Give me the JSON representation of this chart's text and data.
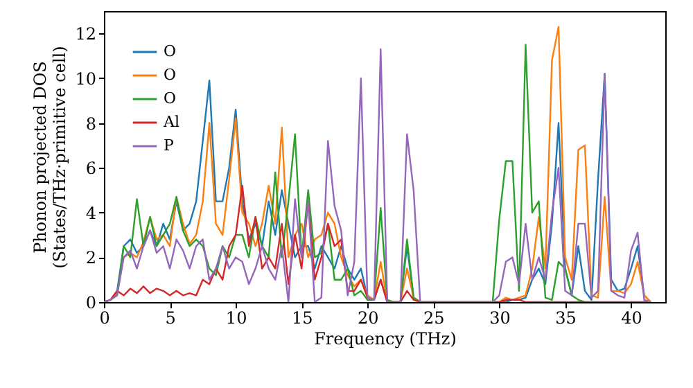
{
  "chart_data": {
    "type": "line",
    "xlabel": "Frequency (THz)",
    "ylabel": "Phonon projected DOS\n(States/THz·primitive cell)",
    "xlim": [
      0,
      42.6
    ],
    "ylim": [
      0,
      13
    ],
    "xticks": [
      0,
      5,
      10,
      15,
      20,
      25,
      30,
      35,
      40
    ],
    "yticks": [
      0,
      2,
      4,
      6,
      8,
      10,
      12
    ],
    "grid": false,
    "legend": "top left",
    "marker": "none",
    "line_style": "solid",
    "x": [
      0,
      0.5,
      1,
      1.5,
      2,
      2.5,
      3,
      3.5,
      4,
      4.5,
      5,
      5.5,
      6,
      6.5,
      7,
      7.5,
      8,
      8.5,
      9,
      9.5,
      10,
      10.5,
      11,
      11.5,
      12,
      12.5,
      13,
      13.5,
      14,
      14.5,
      15,
      15.5,
      16,
      16.5,
      17,
      17.5,
      18,
      18.5,
      19,
      19.5,
      20,
      20.5,
      21,
      21.5,
      22,
      22.5,
      23,
      23.5,
      24,
      24.5,
      25,
      25.5,
      26,
      26.5,
      27,
      27.5,
      28,
      28.5,
      29,
      29.5,
      30,
      30.5,
      31,
      31.5,
      32,
      32.5,
      33,
      33.5,
      34,
      34.5,
      35,
      35.5,
      36,
      36.5,
      37,
      37.5,
      38,
      38.5,
      39,
      39.5,
      40,
      40.5,
      41,
      41.5
    ],
    "series": [
      {
        "name": "O",
        "color": "#1f77b4",
        "values": [
          0,
          0.1,
          0.5,
          2.5,
          2.8,
          2.2,
          2.5,
          3.2,
          2.5,
          3.5,
          2.8,
          4.5,
          3.2,
          3.5,
          4.5,
          7.2,
          9.9,
          4.5,
          4.5,
          6,
          8.6,
          4.5,
          2.8,
          3.5,
          2.5,
          4.5,
          3,
          5,
          3.5,
          2,
          2.5,
          2.5,
          1.5,
          2.5,
          2,
          1.5,
          2.5,
          1.5,
          1,
          1.5,
          0.2,
          0.1,
          1,
          0,
          0,
          0,
          2.5,
          0.2,
          0,
          0,
          0,
          0,
          0,
          0,
          0,
          0,
          0,
          0,
          0,
          0,
          0,
          0,
          0.1,
          0.1,
          0.2,
          1,
          1.5,
          0.8,
          3.5,
          8,
          1.5,
          0.3,
          2.5,
          0.5,
          0.1,
          5.5,
          10.2,
          1,
          0.5,
          0.6,
          1.5,
          2.5,
          0.3,
          0
        ]
      },
      {
        "name": "O",
        "color": "#ff7f0e",
        "values": [
          0,
          0.1,
          0.4,
          2,
          2.2,
          2,
          2.7,
          3.8,
          2.8,
          3,
          2.5,
          4.7,
          3.5,
          2.6,
          3,
          4.5,
          8,
          3.5,
          3,
          5.5,
          8.2,
          4,
          3.5,
          2.5,
          3.5,
          5.2,
          3.5,
          7.8,
          2,
          3,
          3.5,
          2,
          2.8,
          3,
          4,
          3.5,
          2,
          1.2,
          0.7,
          1,
          0.3,
          0.1,
          1.8,
          0,
          0,
          0,
          1.5,
          0.2,
          0,
          0,
          0,
          0,
          0,
          0,
          0,
          0,
          0,
          0,
          0,
          0,
          0,
          0.2,
          0.1,
          0.2,
          0.3,
          1.5,
          3.8,
          1.5,
          10.8,
          12.3,
          2,
          1,
          6.8,
          7,
          0.3,
          0.2,
          4.7,
          0.5,
          0.5,
          0.4,
          0.8,
          1.8,
          0.3,
          0
        ]
      },
      {
        "name": "O",
        "color": "#2ca02c",
        "values": [
          0,
          0.1,
          0.3,
          2.5,
          2,
          4.6,
          2.5,
          3.8,
          2.5,
          3,
          3.5,
          4.7,
          3.2,
          2.5,
          2.8,
          2.5,
          1.5,
          1.2,
          2.5,
          2,
          3,
          3,
          2,
          3.8,
          2.5,
          2,
          5.8,
          2,
          4.5,
          7.5,
          2,
          5,
          2,
          2.2,
          3.5,
          1,
          1,
          1.5,
          0.3,
          0.5,
          0.1,
          0.1,
          4.2,
          0.1,
          0,
          0,
          2.8,
          0.2,
          0,
          0,
          0,
          0,
          0,
          0,
          0,
          0,
          0,
          0,
          0,
          0,
          3.7,
          6.3,
          6.3,
          0.5,
          11.5,
          4,
          4.5,
          0.2,
          0.1,
          1.8,
          1.5,
          0.3,
          0.1,
          0,
          0,
          0,
          null,
          null,
          null,
          null,
          null,
          null,
          null,
          null
        ]
      },
      {
        "name": "Al",
        "color": "#d62728",
        "values": [
          0,
          0.1,
          0.5,
          0.3,
          0.6,
          0.4,
          0.7,
          0.4,
          0.6,
          0.5,
          0.3,
          0.5,
          0.3,
          0.4,
          0.3,
          1,
          0.8,
          1.5,
          1,
          2.5,
          3,
          5.2,
          2.5,
          3.8,
          1.5,
          2,
          1.5,
          3.5,
          0.8,
          3,
          1.5,
          4.5,
          1,
          2,
          3.5,
          2.5,
          2.8,
          0.5,
          0.5,
          1,
          0.2,
          0.1,
          1,
          0,
          0,
          0,
          0.5,
          0.1,
          0,
          0,
          0,
          0,
          0,
          0,
          0,
          0,
          0,
          0,
          0,
          0,
          0,
          0.1,
          0.1,
          0.1,
          0,
          0,
          0,
          0,
          0,
          0,
          0,
          0,
          0,
          0,
          0,
          0,
          0,
          0,
          0,
          0,
          0,
          0,
          0,
          0
        ]
      },
      {
        "name": "P",
        "color": "#9467bd",
        "values": [
          0,
          0.1,
          0.3,
          2,
          2.3,
          1.5,
          2.5,
          3.2,
          2.2,
          2.5,
          1.5,
          2.8,
          2.3,
          1.5,
          2.5,
          2.8,
          1,
          1.5,
          2.5,
          1.5,
          2,
          1.8,
          0.8,
          1.5,
          2.5,
          1.5,
          1,
          2.5,
          0,
          4.6,
          2,
          4.5,
          0,
          0.2,
          7.2,
          4.3,
          3.2,
          0.3,
          1.8,
          10,
          0.2,
          0.1,
          11.3,
          0,
          0,
          0,
          7.5,
          5,
          0,
          0,
          0,
          0,
          0,
          0,
          0,
          0,
          0,
          0,
          0,
          0,
          0.3,
          1.8,
          2,
          0.8,
          3.5,
          1,
          2,
          1,
          4,
          6,
          0.5,
          0.3,
          3.5,
          3.5,
          0.2,
          0.5,
          10.2,
          0.5,
          0.3,
          0.2,
          2.3,
          3.1,
          0.1,
          0
        ]
      }
    ]
  }
}
